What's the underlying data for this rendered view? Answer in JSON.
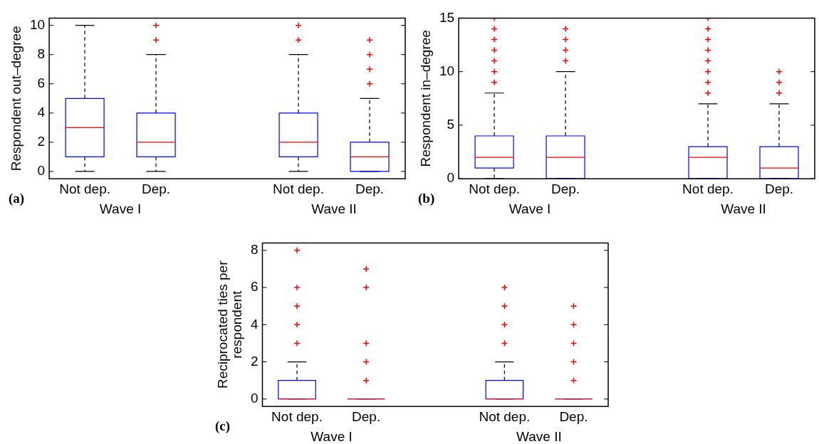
{
  "chart_data": [
    {
      "type": "box",
      "ylabel": "Respondent out–degree",
      "categories": [
        "Not dep.",
        "Dep.",
        null,
        "Not dep.",
        "Dep."
      ],
      "color": "#0000ff",
      "ylim": [
        -0.5,
        10.5
      ],
      "yticks": [
        0,
        2,
        4,
        6,
        8,
        10
      ],
      "annotations": [
        "(a)",
        "Wave I",
        "Wave II"
      ],
      "boxes": [
        {
          "low": 0,
          "q1": 1,
          "median": 3,
          "q3": 5,
          "high": 10
        },
        {
          "low": 0,
          "q1": 1,
          "median": 2,
          "q3": 4,
          "high": 8,
          "outliers": [
            9,
            10
          ]
        },
        null,
        {
          "low": 0,
          "q1": 1,
          "median": 2,
          "q3": 4,
          "high": 8,
          "outliers": [
            9,
            10
          ]
        },
        {
          "low": 0,
          "q1": 0,
          "median": 1,
          "q3": 2,
          "high": 5,
          "outliers": [
            6,
            7,
            8,
            9
          ]
        }
      ]
    },
    {
      "type": "box",
      "ylabel": "Respondent in–degree",
      "categories": [
        "Not dep.",
        "Dep.",
        null,
        "Not dep.",
        "Dep."
      ],
      "color": "#0000ff",
      "ylim": [
        0,
        15
      ],
      "yticks": [
        0,
        5,
        10,
        15
      ],
      "annotations": [
        "(b)",
        "Wave I",
        "Wave II"
      ],
      "boxes": [
        {
          "low": 0,
          "q1": 1,
          "median": 2,
          "q3": 4,
          "high": 8,
          "outliers": [
            9,
            10,
            11,
            12,
            13,
            14,
            15
          ]
        },
        {
          "low": 0,
          "q1": 0,
          "median": 2,
          "q3": 4,
          "high": 10,
          "outliers": [
            11,
            12,
            13,
            14
          ]
        },
        null,
        {
          "low": 0,
          "q1": 0,
          "median": 2,
          "q3": 3,
          "high": 7,
          "outliers": [
            8,
            9,
            10,
            11,
            12,
            13,
            14,
            15
          ]
        },
        {
          "low": 0,
          "q1": 0,
          "median": 1,
          "q3": 3,
          "high": 7,
          "outliers": [
            8,
            9,
            10
          ]
        }
      ]
    },
    {
      "type": "box",
      "ylabel": "Reciprocated ties per respondent",
      "categories": [
        "Not dep.",
        "Dep.",
        null,
        "Not dep.",
        "Dep."
      ],
      "color": "#0000ff",
      "ylim": [
        -0.4,
        8.4
      ],
      "yticks": [
        0,
        2,
        4,
        6,
        8
      ],
      "annotations": [
        "(c)",
        "Wave I",
        "Wave II"
      ],
      "boxes": [
        {
          "low": 0,
          "q1": 0,
          "median": 0,
          "q3": 1,
          "high": 2,
          "outliers": [
            3,
            4,
            5,
            6,
            8
          ]
        },
        {
          "low": 0,
          "q1": 0,
          "median": 0,
          "q3": 0,
          "high": 0,
          "outliers": [
            1,
            2,
            3,
            6,
            7
          ]
        },
        null,
        {
          "low": 0,
          "q1": 0,
          "median": 0,
          "q3": 1,
          "high": 2,
          "outliers": [
            3,
            4,
            5,
            6
          ]
        },
        {
          "low": 0,
          "q1": 0,
          "median": 0,
          "q3": 0,
          "high": 0,
          "outliers": [
            1,
            2,
            3,
            4,
            5
          ]
        }
      ]
    }
  ]
}
